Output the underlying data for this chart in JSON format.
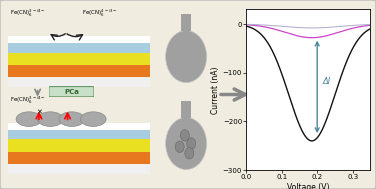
{
  "xlabel": "Voltage (V)",
  "ylabel": "Current (nA)",
  "xlim": [
    0.0,
    0.35
  ],
  "ylim": [
    -300,
    30
  ],
  "yticks": [
    -300,
    -200,
    -100,
    0
  ],
  "xticks": [
    0.0,
    0.1,
    0.2,
    0.3
  ],
  "curve_black_color": "#111111",
  "curve_purple_color": "#cc44cc",
  "curve_gray_color": "#aaaacc",
  "arrow_color": "#4d8899",
  "annotation_text": "ΔI",
  "bg_outer": "#ffffff",
  "bg_inner": "#f0ece0",
  "box_bg": "#f0ece0",
  "layer_blue": "#a8cce0",
  "layer_yellow": "#e8e020",
  "layer_orange": "#e87820",
  "layer_white": "#f0f0f0",
  "schematic_border": "#cccccc",
  "arrow_schematic_color": "#888888",
  "pca_box_color": "#88aa88",
  "black_box_bg": "#111111",
  "electrode_gray": "#a0a0a0"
}
